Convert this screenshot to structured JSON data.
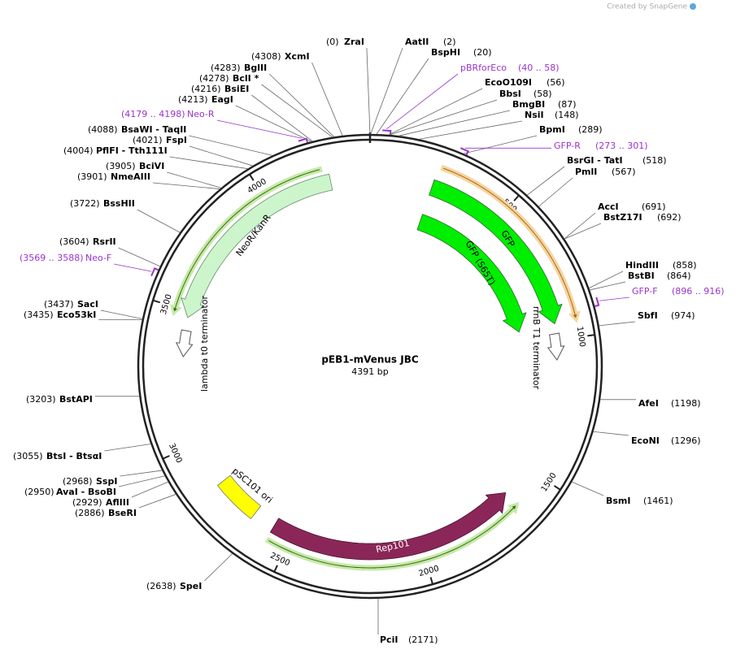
{
  "header": {
    "credit": "Created by SnapGene"
  },
  "map": {
    "title": "pEB1-mVenus JBC",
    "subtitle": "4391 bp",
    "ruler": [
      500,
      1000,
      1500,
      2000,
      2500,
      3000,
      3500,
      4000
    ],
    "sites": [
      {
        "name": "ZraI",
        "position": "(0)"
      },
      {
        "name": "AatII",
        "position": "(2)"
      },
      {
        "name": "BspHI",
        "position": "(20)"
      },
      {
        "name": "pBRforEco",
        "position": "(40 .. 58)",
        "color": "#9933cc"
      },
      {
        "name": "EcoO109I",
        "position": "(56)"
      },
      {
        "name": "BbsI",
        "position": "(58)"
      },
      {
        "name": "BmgBI",
        "position": "(87)"
      },
      {
        "name": "NsiI",
        "position": "(148)"
      },
      {
        "name": "BpmI",
        "position": "(289)"
      },
      {
        "name": "GFP-R",
        "position": "(273 .. 301)",
        "color": "#9933cc"
      },
      {
        "name": "BsrGI  - TatI",
        "position": "(518)"
      },
      {
        "name": "PmlI",
        "position": "(567)"
      },
      {
        "name": "AccI",
        "position": "(691)"
      },
      {
        "name": "BstZ17I",
        "position": "(692)"
      },
      {
        "name": "HindIII",
        "position": "(858)"
      },
      {
        "name": "BstBI",
        "position": "(864)"
      },
      {
        "name": "GFP-F",
        "position": "(896 .. 916)",
        "color": "#9933cc"
      },
      {
        "name": "SbfI",
        "position": "(974)"
      },
      {
        "name": "AfeI",
        "position": "(1198)"
      },
      {
        "name": "EcoNI",
        "position": "(1296)"
      },
      {
        "name": "BsmI",
        "position": "(1461)"
      },
      {
        "name": "PciI",
        "position": "(2171)"
      },
      {
        "name": "SpeI",
        "position": "(2638)"
      },
      {
        "name": "BseRI",
        "position": "(2886)"
      },
      {
        "name": "AflIII",
        "position": "(2929)"
      },
      {
        "name": "AvaI  - BsoBI",
        "position": "(2950)"
      },
      {
        "name": "SspI",
        "position": "(2968)"
      },
      {
        "name": "BtsI  - BtsαI",
        "position": "(3055)"
      },
      {
        "name": "BstAPI",
        "position": "(3203)"
      },
      {
        "name": "Eco53kI",
        "position": "(3435)"
      },
      {
        "name": "SacI",
        "position": "(3437)"
      },
      {
        "name": "Neo-F",
        "position": "(3569 .. 3588)",
        "color": "#9933cc"
      },
      {
        "name": "RsrII",
        "position": "(3604)"
      },
      {
        "name": "BssHII",
        "position": "(3722)"
      },
      {
        "name": "NmeAIII",
        "position": "(3901)"
      },
      {
        "name": "BciVI",
        "position": "(3905)"
      },
      {
        "name": "PflFI  - Tth111I",
        "position": "(4004)"
      },
      {
        "name": "FspI",
        "position": "(4021)"
      },
      {
        "name": "BsaWI  - TaqII",
        "position": "(4088)"
      },
      {
        "name": "Neo-R",
        "position": "(4179 .. 4198)",
        "color": "#9933cc"
      },
      {
        "name": "EagI",
        "position": "(4213)"
      },
      {
        "name": "BsiEI",
        "position": "(4216)"
      },
      {
        "name": "BclI *",
        "position": "(4278)"
      },
      {
        "name": "BglII",
        "position": "(4283)"
      },
      {
        "name": "XcmI",
        "position": "(4308)"
      }
    ],
    "features": [
      {
        "name": "NeoR/KanR"
      },
      {
        "name": "GFP"
      },
      {
        "name": "GFP (S65T)"
      },
      {
        "name": "Rep101"
      },
      {
        "name": "pSC101 ori"
      },
      {
        "name": "lambda t0 terminator"
      },
      {
        "name": "rrnB T1 terminator"
      }
    ]
  }
}
